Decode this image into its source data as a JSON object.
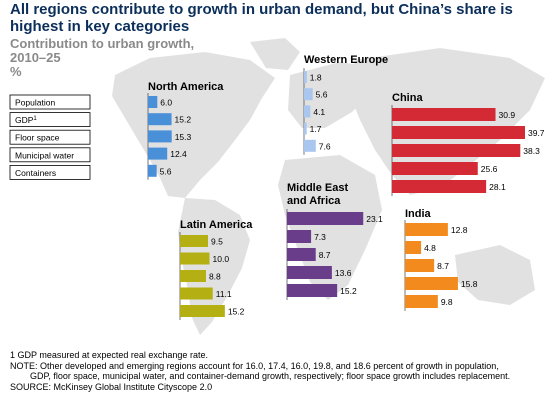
{
  "title": "All regions contribute to growth in urban demand, but China’s share is highest in key categories",
  "subtitle_line1": "Contribution to urban growth,",
  "subtitle_line2": "2010–25",
  "unit": "%",
  "legend": [
    "Population",
    "GDP",
    "Floor space",
    "Municipal water",
    "Containers"
  ],
  "legend_sup": "1",
  "footnotes": {
    "note1": "1  GDP measured at expected real exchange rate.",
    "note2_line1": "NOTE: Other developed and emerging regions account for 16.0, 17.4, 16.0, 19.8, and 18.6 percent of growth in population,",
    "note2_line2": "GDP, floor space, municipal water, and container-demand growth, respectively; floor space growth includes replacement.",
    "source": "SOURCE: McKinsey Global Institute Cityscope 2.0"
  },
  "chart_data": {
    "type": "bar",
    "categories": [
      "Population",
      "GDP",
      "Floor space",
      "Municipal water",
      "Containers"
    ],
    "unit": "%",
    "regions": [
      {
        "name": "North America",
        "color": "#4a90d9",
        "values": [
          6.0,
          15.2,
          15.3,
          12.4,
          5.6
        ]
      },
      {
        "name": "Western Europe",
        "color": "#a9c6ee",
        "values": [
          1.8,
          5.6,
          4.1,
          1.7,
          7.6
        ]
      },
      {
        "name": "China",
        "color": "#d42a35",
        "values": [
          30.9,
          39.7,
          38.3,
          25.6,
          28.1
        ]
      },
      {
        "name": "Middle East and Africa",
        "name_line1": "Middle East",
        "name_line2": "and Africa",
        "color": "#6a3d8a",
        "values": [
          23.1,
          7.3,
          8.7,
          13.6,
          15.2
        ]
      },
      {
        "name": "India",
        "color": "#f28a1e",
        "values": [
          12.8,
          4.8,
          8.7,
          15.8,
          9.8
        ]
      },
      {
        "name": "Latin America",
        "color": "#b4b014",
        "values": [
          9.5,
          10.0,
          8.8,
          11.1,
          15.2
        ]
      }
    ]
  }
}
